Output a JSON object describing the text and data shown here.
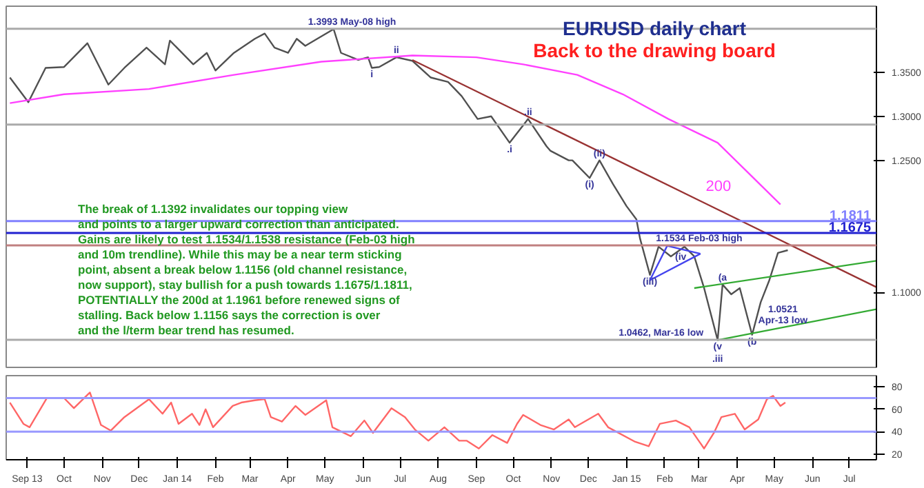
{
  "chart_data": [
    {
      "type": "line",
      "title": "EURUSD daily chart",
      "subtitle": "Back to the drawing board",
      "xlim": [
        "2013-08-15",
        "2015-07-23"
      ],
      "ylim": [
        1.015,
        1.425
      ],
      "yticks": [
        {
          "value": 1.35,
          "label": "1.3500"
        },
        {
          "value": 1.3,
          "label": "1.3000"
        },
        {
          "value": 1.25,
          "label": "1.2500"
        },
        {
          "value": 1.1,
          "label": "1.1000"
        }
      ],
      "tick_labels": "y",
      "grid": false,
      "series": [
        {
          "color": "#505050",
          "x": [
            "2013-08-18",
            "2013-09-02",
            "2013-09-16",
            "2013-10-01",
            "2013-10-20",
            "2013-11-06",
            "2013-11-19",
            "2013-12-07",
            "2013-12-22",
            "2013-12-26",
            "2014-01-14",
            "2014-01-25",
            "2014-02-01",
            "2014-02-16",
            "2014-03-05",
            "2014-03-13",
            "2014-03-21",
            "2014-04-01",
            "2014-04-08",
            "2014-04-15",
            "2014-05-08",
            "2014-05-14",
            "2014-05-28",
            "2014-06-05",
            "2014-06-08",
            "2014-06-14",
            "2014-06-28",
            "2014-07-11",
            "2014-07-26",
            "2014-08-09",
            "2014-08-20",
            "2014-09-02",
            "2014-09-13",
            "2014-09-28",
            "2014-10-13",
            "2014-10-28",
            "2014-10-31",
            "2014-11-15",
            "2014-11-18",
            "2014-12-02",
            "2014-12-10",
            "2014-12-21",
            "2015-01-01",
            "2015-01-09",
            "2015-01-12",
            "2015-01-20",
            "2015-01-27",
            "2015-02-06",
            "2015-02-17",
            "2015-02-25",
            "2015-03-05",
            "2015-03-16",
            "2015-03-20",
            "2015-03-27",
            "2015-04-03",
            "2015-04-13",
            "2015-04-20",
            "2015-04-27",
            "2015-05-04",
            "2015-05-12"
          ],
          "values": [
            1.344,
            1.316,
            1.355,
            1.356,
            1.383,
            1.336,
            1.355,
            1.378,
            1.359,
            1.386,
            1.359,
            1.372,
            1.352,
            1.372,
            1.388,
            1.394,
            1.378,
            1.372,
            1.388,
            1.38,
            1.399,
            1.372,
            1.364,
            1.367,
            1.355,
            1.356,
            1.367,
            1.363,
            1.344,
            1.339,
            1.323,
            1.297,
            1.3,
            1.27,
            1.297,
            1.266,
            1.261,
            1.25,
            1.25,
            1.23,
            1.25,
            1.223,
            1.198,
            1.183,
            1.161,
            1.12,
            1.152,
            1.141,
            1.152,
            1.141,
            1.105,
            1.046,
            1.109,
            1.098,
            1.105,
            1.052,
            1.089,
            1.114,
            1.145,
            1.148
          ]
        },
        {
          "name": "200",
          "color": "#ff40ff",
          "x": [
            "2013-08-18",
            "2013-10-01",
            "2013-12-09",
            "2014-02-16",
            "2014-04-28",
            "2014-07-11",
            "2014-09-01",
            "2014-10-09",
            "2014-11-22",
            "2014-12-29",
            "2015-02-04",
            "2015-03-16",
            "2015-05-06"
          ],
          "values": [
            1.315,
            1.325,
            1.331,
            1.347,
            1.362,
            1.369,
            1.367,
            1.359,
            1.347,
            1.325,
            1.297,
            1.27,
            1.2
          ]
        },
        {
          "type": "line",
          "color": "#993333",
          "x": [
            "2014-07-11",
            "2015-07-23"
          ],
          "values": [
            1.364,
            1.106
          ]
        },
        {
          "type": "line",
          "color": "#33aa33",
          "x": [
            "2015-02-25",
            "2015-07-23"
          ],
          "values": [
            1.105,
            1.136
          ]
        },
        {
          "type": "line",
          "color": "#33aa33",
          "x": [
            "2015-03-16",
            "2015-07-23"
          ],
          "values": [
            1.046,
            1.081
          ]
        },
        {
          "type": "line",
          "color": "#4444ee",
          "x": [
            "2015-01-20",
            "2015-02-03"
          ],
          "values": [
            1.114,
            1.153
          ]
        },
        {
          "type": "line",
          "color": "#4444ee",
          "x": [
            "2015-01-20",
            "2015-03-02"
          ],
          "values": [
            1.114,
            1.144
          ]
        },
        {
          "type": "line",
          "color": "#4444ee",
          "x": [
            "2015-02-03",
            "2015-03-02"
          ],
          "values": [
            1.153,
            1.144
          ]
        }
      ],
      "ref_lines": [
        {
          "axis": "y",
          "value": 1.1811,
          "label": "1.1811",
          "color": "#8080ff"
        },
        {
          "axis": "y",
          "value": 1.1675,
          "label": "1.1675",
          "color": "#2020d0"
        },
        {
          "axis": "y",
          "value": 1.1534,
          "color": "#c08080"
        },
        {
          "axis": "y",
          "value": 1.3993,
          "color": "#aaaaaa"
        },
        {
          "axis": "y",
          "value": 1.2906,
          "color": "#aaaaaa"
        },
        {
          "axis": "y",
          "value": 1.0462,
          "color": "#aaaaaa"
        }
      ],
      "annotations": [
        "The break of 1.1392 invalidates our topping view\nand points to a larger upward correction than anticipated.\nGains are likely to test 1.1534/1.1538 resistance (Feb-03 high\nand 10m trendline). While this may be a near term sticking\npoint, absent a break below 1.1156 (old channel resistance,\nnow support), stay bullish for a push towards 1.1675/1.1811,\nPOTENTIALLY the 200d at 1.1961 before renewed signs of\nstalling. Back below 1.1156 says the correction is over\nand the l/term bear trend has resumed.",
        {
          "text": "1.3993 May-08 high",
          "x": "2014-05-23",
          "y": 1.3993
        },
        {
          "text": "1.1534 Feb-03 high",
          "x": "2015-03-01",
          "y": 1.1534
        },
        {
          "text": "1.0462, Mar-16 low",
          "x": "2015-01-29",
          "y": 1.0462
        },
        {
          "text": "1.0521\nApr-13 low",
          "x": "2015-05-08",
          "y": 1.06
        },
        {
          "text": "i",
          "x": "2014-06-08",
          "y": 1.355
        },
        {
          "text": "ii",
          "x": "2014-06-28",
          "y": 1.367
        },
        {
          "text": ".i",
          "x": "2014-09-28",
          "y": 1.27
        },
        {
          "text": ".ii",
          "x": "2014-10-13",
          "y": 1.297
        },
        {
          "text": "(i)",
          "x": "2014-12-02",
          "y": 1.23
        },
        {
          "text": "(ii)",
          "x": "2014-12-10",
          "y": 1.25
        },
        {
          "text": "(iii)",
          "x": "2015-01-20",
          "y": 1.12
        },
        {
          "text": "(iv",
          "x": "2015-02-14",
          "y": 1.1323
        },
        {
          "text": "(a",
          "x": "2015-03-20",
          "y": 1.109
        },
        {
          "text": "(v",
          "x": "2015-03-16",
          "y": 1.046
        },
        {
          "text": ".iii",
          "x": "2015-03-16",
          "y": 1.046
        },
        {
          "text": "(b",
          "x": "2015-04-13",
          "y": 1.052
        }
      ]
    },
    {
      "type": "line",
      "xlim": [
        "2013-08-15",
        "2015-07-23"
      ],
      "ylim": [
        15,
        90
      ],
      "yticks": [
        20,
        40,
        60,
        80
      ],
      "grid": false,
      "xticks": [
        {
          "value": "2013-09-01",
          "label": "Sep 13"
        },
        {
          "value": "2013-10-01",
          "label": "Oct"
        },
        {
          "value": "2013-11-01",
          "label": "Nov"
        },
        {
          "value": "2013-12-01",
          "label": "Dec"
        },
        {
          "value": "2014-01-01",
          "label": "Jan 14"
        },
        {
          "value": "2014-02-01",
          "label": "Feb"
        },
        {
          "value": "2014-03-01",
          "label": "Mar"
        },
        {
          "value": "2014-04-01",
          "label": "Apr"
        },
        {
          "value": "2014-05-01",
          "label": "May"
        },
        {
          "value": "2014-06-01",
          "label": "Jun"
        },
        {
          "value": "2014-07-01",
          "label": "Jul"
        },
        {
          "value": "2014-08-01",
          "label": "Aug"
        },
        {
          "value": "2014-09-01",
          "label": "Sep"
        },
        {
          "value": "2014-10-01",
          "label": "Oct"
        },
        {
          "value": "2014-11-01",
          "label": "Nov"
        },
        {
          "value": "2014-12-01",
          "label": "Dec"
        },
        {
          "value": "2015-01-01",
          "label": "Jan 15"
        },
        {
          "value": "2015-02-01",
          "label": "Feb"
        },
        {
          "value": "2015-03-01",
          "label": "Mar"
        },
        {
          "value": "2015-04-01",
          "label": "Apr"
        },
        {
          "value": "2015-05-01",
          "label": "May"
        },
        {
          "value": "2015-06-01",
          "label": "Jun"
        },
        {
          "value": "2015-07-01",
          "label": "Jul"
        }
      ],
      "series": [
        {
          "color": "#ff6666",
          "x": [
            "2013-08-18",
            "2013-08-29",
            "2013-09-03",
            "2013-09-17",
            "2013-10-01",
            "2013-10-09",
            "2013-10-22",
            "2013-10-31",
            "2013-11-08",
            "2013-11-19",
            "2013-12-09",
            "2013-12-20",
            "2013-12-27",
            "2014-01-02",
            "2014-01-13",
            "2014-01-19",
            "2014-01-24",
            "2014-01-30",
            "2014-02-15",
            "2014-02-22",
            "2014-03-05",
            "2014-03-13",
            "2014-03-18",
            "2014-03-27",
            "2014-04-07",
            "2014-04-15",
            "2014-05-02",
            "2014-05-07",
            "2014-05-22",
            "2014-06-02",
            "2014-06-09",
            "2014-06-24",
            "2014-07-05",
            "2014-07-13",
            "2014-07-24",
            "2014-08-06",
            "2014-08-18",
            "2014-08-24",
            "2014-09-03",
            "2014-09-14",
            "2014-09-26",
            "2014-10-04",
            "2014-10-09",
            "2014-10-23",
            "2014-11-03",
            "2014-11-15",
            "2014-11-20",
            "2014-12-09",
            "2014-12-17",
            "2015-01-08",
            "2015-01-19",
            "2015-01-28",
            "2015-02-10",
            "2015-02-21",
            "2015-03-05",
            "2015-03-13",
            "2015-03-19",
            "2015-03-30",
            "2015-04-07",
            "2015-04-18",
            "2015-04-25",
            "2015-04-30",
            "2015-05-06",
            "2015-05-10"
          ],
          "values": [
            66,
            47,
            44,
            70,
            70,
            61,
            75,
            46,
            41,
            53,
            69,
            56,
            66,
            47,
            56,
            46,
            60,
            44,
            63,
            66,
            68,
            69,
            53,
            49,
            63,
            55,
            68,
            44,
            36,
            50,
            39,
            61,
            53,
            42,
            32,
            44,
            32,
            32,
            25,
            37,
            30,
            47,
            55,
            46,
            42,
            51,
            44,
            56,
            44,
            31,
            27,
            47,
            50,
            44,
            25,
            39,
            53,
            56,
            42,
            51,
            69,
            72,
            63,
            66
          ]
        }
      ],
      "ref_lines": [
        {
          "axis": "y",
          "value": 70,
          "color": "#9999ff"
        },
        {
          "axis": "y",
          "value": 40,
          "color": "#9999ff"
        }
      ]
    }
  ]
}
